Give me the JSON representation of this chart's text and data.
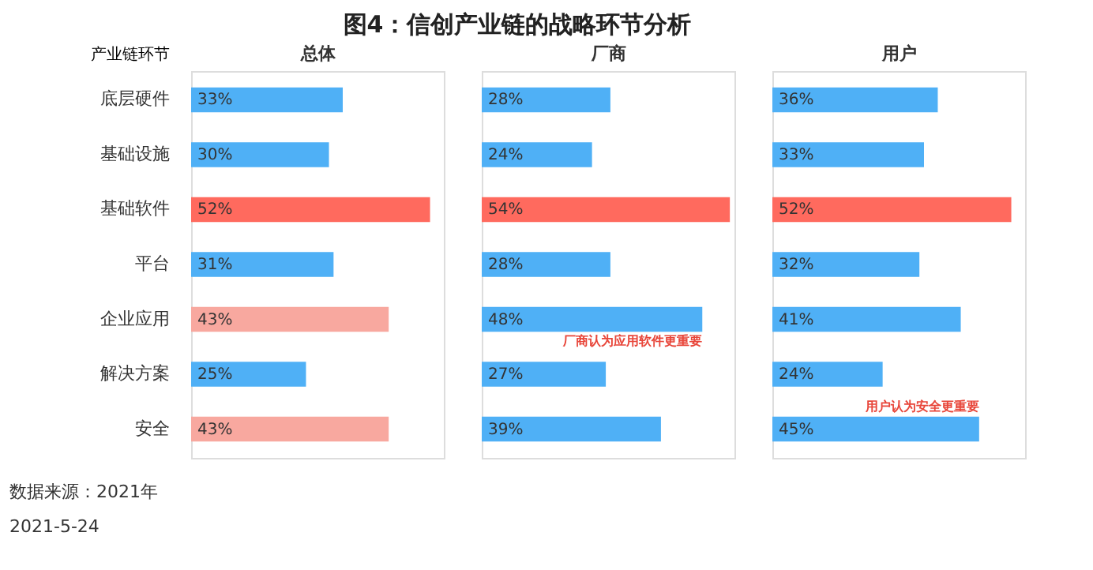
{
  "chart_data": [
    {
      "type": "bar",
      "orientation": "horizontal",
      "title": "图4：信创产业链的战略环节分析",
      "ylabel": "产业链环节",
      "xlabel": "总体",
      "tick_labels": "y",
      "categories": [
        "底层硬件",
        "基础设施",
        "基础软件",
        "平台",
        "企业应用",
        "解决方案",
        "安全"
      ],
      "values": [
        33,
        30,
        52,
        31,
        43,
        25,
        43
      ],
      "value_labels": [
        "33%",
        "30%",
        "52%",
        "31%",
        "43%",
        "25%",
        "43%"
      ],
      "colors": [
        "#4fb0f6",
        "#4fb0f6",
        "#ff6a5e",
        "#4fb0f6",
        "#f8a89f",
        "#4fb0f6",
        "#f8a89f"
      ],
      "annotations": [
        "数据来源：2021年",
        "2021-5-24"
      ]
    },
    {
      "type": "bar",
      "orientation": "horizontal",
      "xlabel": "厂商",
      "tick_labels": false,
      "categories": [
        "底层硬件",
        "基础设施",
        "基础软件",
        "平台",
        "企业应用",
        "解决方案",
        "安全"
      ],
      "values": [
        28,
        24,
        54,
        28,
        48,
        27,
        39
      ],
      "value_labels": [
        "28%",
        "24%",
        "54%",
        "28%",
        "48%",
        "27%",
        "39%"
      ],
      "colors": [
        "#4fb0f6",
        "#4fb0f6",
        "#ff6a5e",
        "#4fb0f6",
        "#4fb0f6",
        "#4fb0f6",
        "#4fb0f6"
      ],
      "annotations": [
        {
          "text": "厂商认为应用软件更重要",
          "x": 48,
          "y": "企业应用"
        }
      ]
    },
    {
      "type": "bar",
      "orientation": "horizontal",
      "xlabel": "用户",
      "tick_labels": false,
      "categories": [
        "底层硬件",
        "基础设施",
        "基础软件",
        "平台",
        "企业应用",
        "解决方案",
        "安全"
      ],
      "values": [
        36,
        33,
        52,
        32,
        41,
        24,
        45
      ],
      "value_labels": [
        "36%",
        "33%",
        "52%",
        "32%",
        "41%",
        "24%",
        "45%"
      ],
      "colors": [
        "#4fb0f6",
        "#4fb0f6",
        "#ff6a5e",
        "#4fb0f6",
        "#4fb0f6",
        "#4fb0f6",
        "#4fb0f6"
      ],
      "annotations": [
        {
          "text": "用户认为安全更重要",
          "x": 45,
          "y": "安全"
        }
      ]
    }
  ]
}
